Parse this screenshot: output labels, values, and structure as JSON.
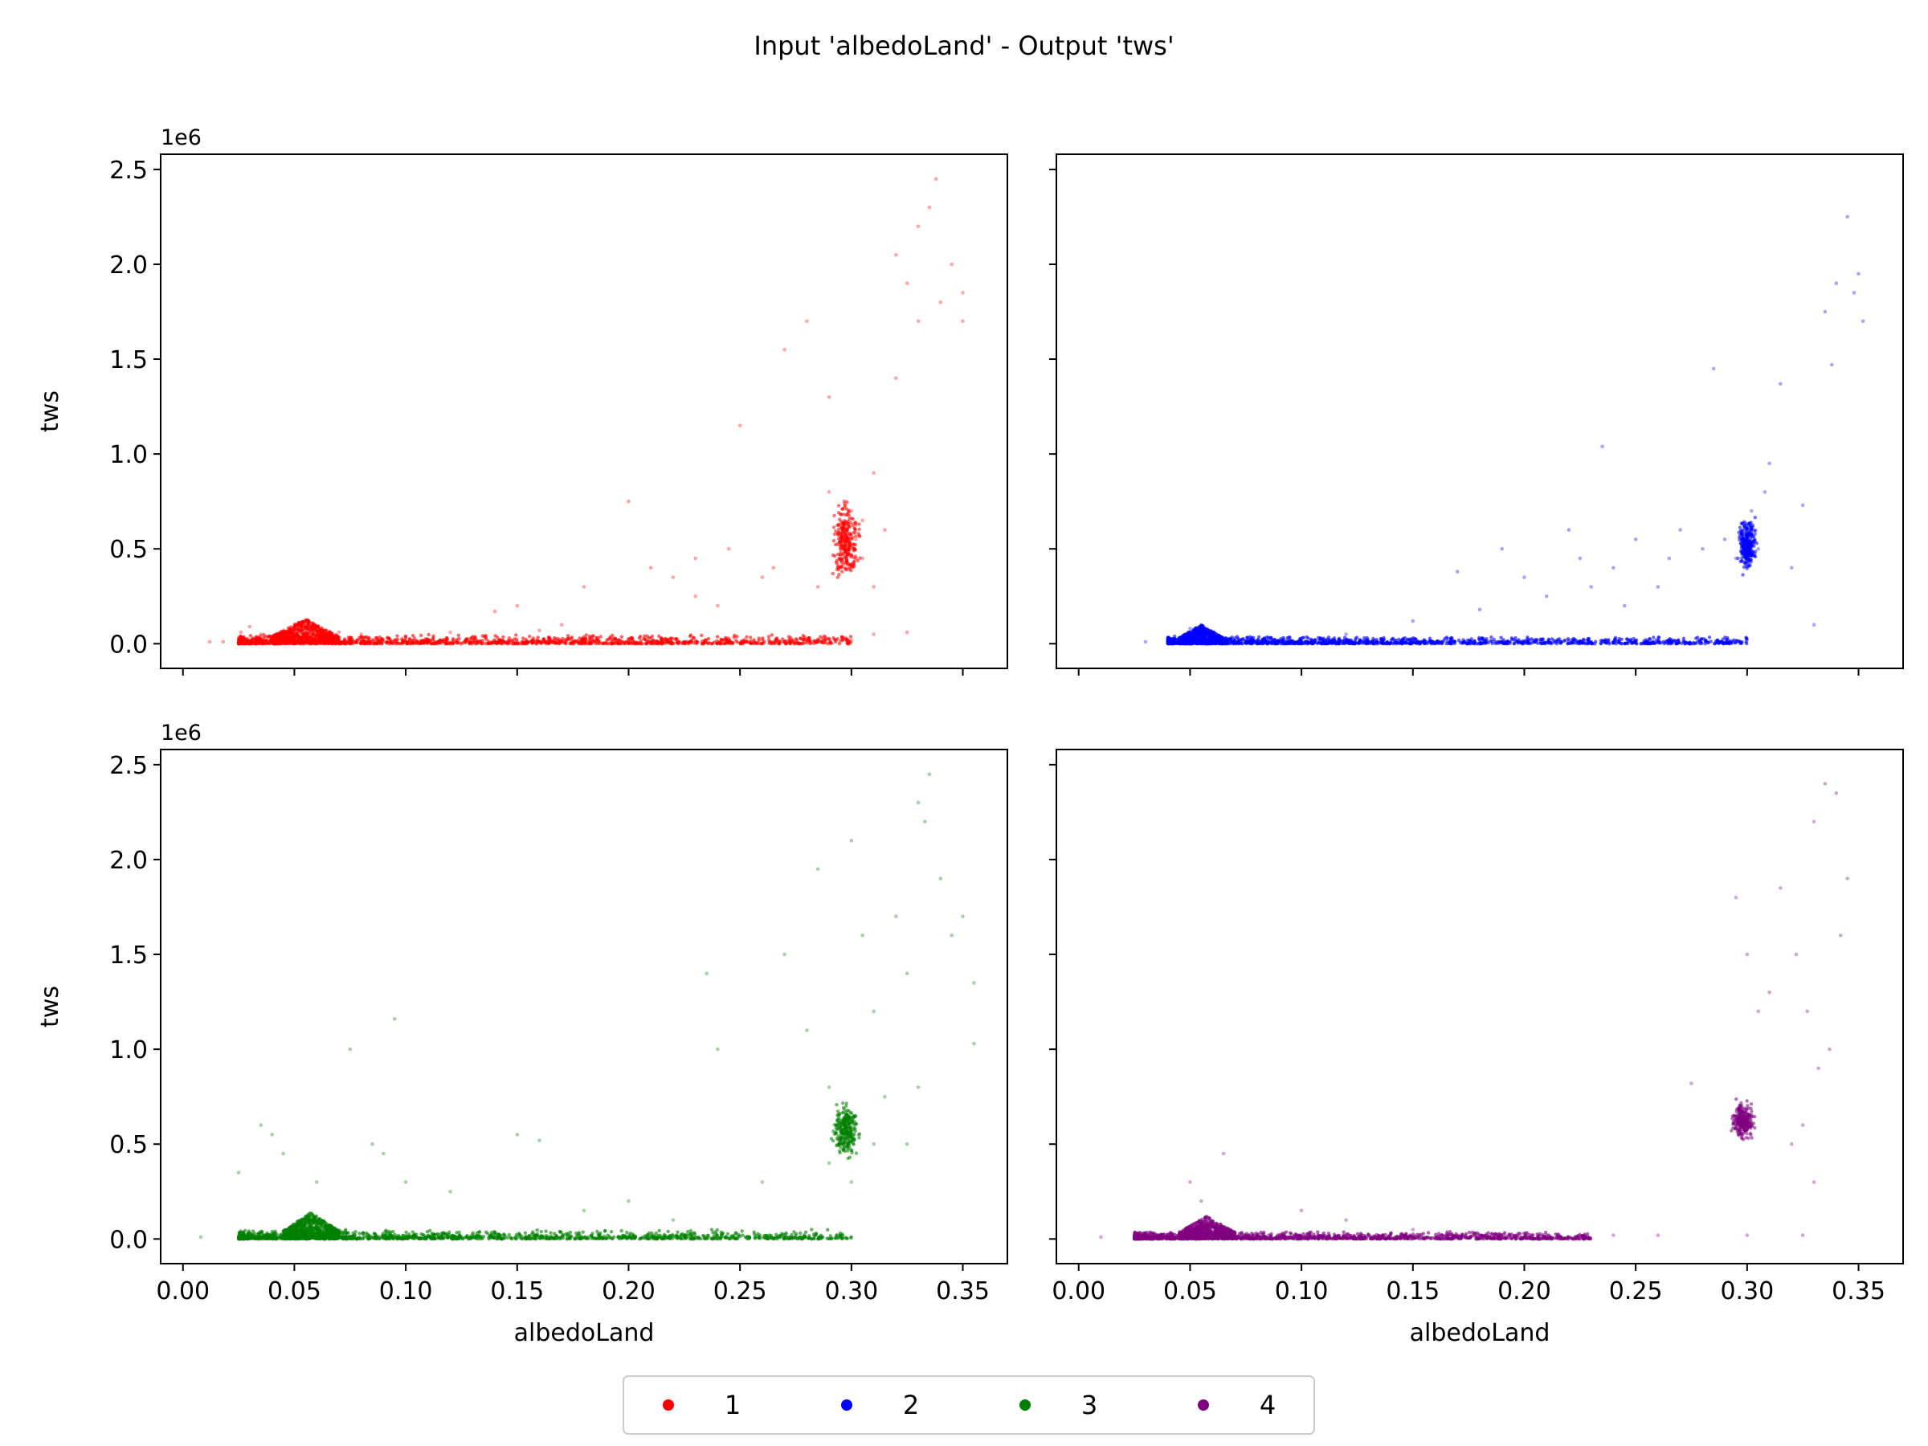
{
  "figure": {
    "title": "Input 'albedoLand' - Output 'tws'",
    "offset_label": "1e6"
  },
  "chart_data": [
    {
      "type": "scatter",
      "series_name": "1",
      "color": "#ff0000",
      "xlabel": "",
      "ylabel": "tws",
      "xlim": [
        -0.01,
        0.37
      ],
      "ylim": [
        -0.13,
        2.58
      ],
      "y_multiplier": "1e6",
      "xticks": [
        "0.00",
        "0.05",
        "0.10",
        "0.15",
        "0.20",
        "0.25",
        "0.30",
        "0.35"
      ],
      "yticks": [
        "0.0",
        "0.5",
        "1.0",
        "1.5",
        "2.0",
        "2.5"
      ],
      "x_tick_labels_shown": false,
      "y_tick_labels_shown": true,
      "points": [
        [
          0.012,
          0.01
        ],
        [
          0.018,
          0.01
        ],
        [
          0.026,
          0.06
        ],
        [
          0.03,
          0.09
        ],
        [
          0.035,
          0.05
        ],
        [
          0.045,
          0.07
        ],
        [
          0.05,
          0.1
        ],
        [
          0.055,
          0.12
        ],
        [
          0.06,
          0.08
        ],
        [
          0.07,
          0.06
        ],
        [
          0.08,
          0.05
        ],
        [
          0.1,
          0.04
        ],
        [
          0.12,
          0.06
        ],
        [
          0.14,
          0.17
        ],
        [
          0.15,
          0.2
        ],
        [
          0.16,
          0.07
        ],
        [
          0.17,
          0.1
        ],
        [
          0.18,
          0.3
        ],
        [
          0.2,
          0.75
        ],
        [
          0.21,
          0.4
        ],
        [
          0.22,
          0.35
        ],
        [
          0.23,
          0.25
        ],
        [
          0.23,
          0.45
        ],
        [
          0.24,
          0.2
        ],
        [
          0.245,
          0.5
        ],
        [
          0.25,
          1.15
        ],
        [
          0.26,
          0.35
        ],
        [
          0.265,
          0.4
        ],
        [
          0.27,
          1.55
        ],
        [
          0.28,
          1.7
        ],
        [
          0.285,
          0.3
        ],
        [
          0.29,
          0.8
        ],
        [
          0.29,
          1.3
        ],
        [
          0.295,
          0.4
        ],
        [
          0.295,
          0.5
        ],
        [
          0.298,
          0.6
        ],
        [
          0.3,
          0.7
        ],
        [
          0.302,
          0.55
        ],
        [
          0.305,
          0.65
        ],
        [
          0.305,
          0.45
        ],
        [
          0.31,
          0.9
        ],
        [
          0.31,
          0.3
        ],
        [
          0.315,
          0.6
        ],
        [
          0.32,
          1.4
        ],
        [
          0.32,
          2.05
        ],
        [
          0.325,
          1.9
        ],
        [
          0.33,
          2.2
        ],
        [
          0.33,
          1.7
        ],
        [
          0.335,
          2.3
        ],
        [
          0.338,
          2.45
        ],
        [
          0.34,
          1.8
        ],
        [
          0.345,
          2.0
        ],
        [
          0.35,
          1.7
        ],
        [
          0.35,
          1.85
        ],
        [
          0.31,
          0.05
        ],
        [
          0.3,
          0.02
        ],
        [
          0.325,
          0.06
        ]
      ],
      "dense_band": {
        "x": [
          0.025,
          0.3
        ],
        "y_max": 0.05,
        "hump_x": [
          0.04,
          0.07
        ],
        "hump_y": 0.13
      },
      "clusters": [
        {
          "x": [
            0.29,
            0.305
          ],
          "y": [
            0.3,
            0.8
          ]
        }
      ]
    },
    {
      "type": "scatter",
      "series_name": "2",
      "color": "#0000ff",
      "xlabel": "",
      "ylabel": "",
      "xlim": [
        -0.01,
        0.37
      ],
      "ylim": [
        -0.13,
        2.58
      ],
      "xticks": [
        "0.00",
        "0.05",
        "0.10",
        "0.15",
        "0.20",
        "0.25",
        "0.30",
        "0.35"
      ],
      "yticks": [
        "0.0",
        "0.5",
        "1.0",
        "1.5",
        "2.0",
        "2.5"
      ],
      "x_tick_labels_shown": false,
      "y_tick_labels_shown": false,
      "points": [
        [
          0.03,
          0.01
        ],
        [
          0.04,
          0.03
        ],
        [
          0.05,
          0.08
        ],
        [
          0.055,
          0.1
        ],
        [
          0.06,
          0.06
        ],
        [
          0.12,
          0.05
        ],
        [
          0.15,
          0.12
        ],
        [
          0.17,
          0.38
        ],
        [
          0.18,
          0.18
        ],
        [
          0.19,
          0.5
        ],
        [
          0.2,
          0.35
        ],
        [
          0.21,
          0.25
        ],
        [
          0.22,
          0.6
        ],
        [
          0.225,
          0.45
        ],
        [
          0.23,
          0.3
        ],
        [
          0.235,
          1.04
        ],
        [
          0.24,
          0.4
        ],
        [
          0.245,
          0.2
        ],
        [
          0.25,
          0.55
        ],
        [
          0.26,
          0.3
        ],
        [
          0.265,
          0.45
        ],
        [
          0.27,
          0.6
        ],
        [
          0.28,
          0.5
        ],
        [
          0.285,
          1.45
        ],
        [
          0.29,
          0.55
        ],
        [
          0.295,
          0.45
        ],
        [
          0.3,
          0.6
        ],
        [
          0.302,
          0.7
        ],
        [
          0.305,
          0.5
        ],
        [
          0.308,
          0.8
        ],
        [
          0.31,
          0.95
        ],
        [
          0.315,
          1.37
        ],
        [
          0.32,
          0.4
        ],
        [
          0.325,
          0.73
        ],
        [
          0.335,
          1.75
        ],
        [
          0.338,
          1.47
        ],
        [
          0.34,
          1.9
        ],
        [
          0.345,
          2.25
        ],
        [
          0.348,
          1.85
        ],
        [
          0.35,
          1.95
        ],
        [
          0.352,
          1.7
        ],
        [
          0.33,
          0.1
        ],
        [
          0.3,
          0.02
        ]
      ],
      "dense_band": {
        "x": [
          0.04,
          0.3
        ],
        "y_max": 0.04,
        "hump_x": [
          0.045,
          0.065
        ],
        "hump_y": 0.1
      },
      "clusters": [
        {
          "x": [
            0.295,
            0.305
          ],
          "y": [
            0.35,
            0.7
          ]
        }
      ]
    },
    {
      "type": "scatter",
      "series_name": "3",
      "color": "#008000",
      "xlabel": "albedoLand",
      "ylabel": "tws",
      "xlim": [
        -0.01,
        0.37
      ],
      "ylim": [
        -0.13,
        2.58
      ],
      "y_multiplier": "1e6",
      "xticks": [
        "0.00",
        "0.05",
        "0.10",
        "0.15",
        "0.20",
        "0.25",
        "0.30",
        "0.35"
      ],
      "yticks": [
        "0.0",
        "0.5",
        "1.0",
        "1.5",
        "2.0",
        "2.5"
      ],
      "x_tick_labels_shown": true,
      "y_tick_labels_shown": true,
      "points": [
        [
          0.008,
          0.01
        ],
        [
          0.025,
          0.35
        ],
        [
          0.035,
          0.6
        ],
        [
          0.04,
          0.55
        ],
        [
          0.045,
          0.45
        ],
        [
          0.06,
          0.3
        ],
        [
          0.075,
          1.0
        ],
        [
          0.085,
          0.5
        ],
        [
          0.09,
          0.45
        ],
        [
          0.095,
          1.16
        ],
        [
          0.1,
          0.3
        ],
        [
          0.12,
          0.25
        ],
        [
          0.15,
          0.55
        ],
        [
          0.16,
          0.52
        ],
        [
          0.18,
          0.15
        ],
        [
          0.2,
          0.2
        ],
        [
          0.22,
          0.1
        ],
        [
          0.235,
          1.4
        ],
        [
          0.24,
          1.0
        ],
        [
          0.26,
          0.3
        ],
        [
          0.27,
          1.5
        ],
        [
          0.28,
          1.1
        ],
        [
          0.285,
          1.95
        ],
        [
          0.29,
          0.8
        ],
        [
          0.29,
          0.4
        ],
        [
          0.295,
          0.6
        ],
        [
          0.3,
          2.1
        ],
        [
          0.3,
          0.3
        ],
        [
          0.305,
          1.6
        ],
        [
          0.31,
          0.5
        ],
        [
          0.31,
          1.2
        ],
        [
          0.315,
          0.75
        ],
        [
          0.32,
          1.7
        ],
        [
          0.325,
          1.4
        ],
        [
          0.33,
          2.3
        ],
        [
          0.333,
          2.2
        ],
        [
          0.335,
          2.45
        ],
        [
          0.34,
          1.9
        ],
        [
          0.345,
          1.6
        ],
        [
          0.35,
          1.7
        ],
        [
          0.355,
          1.35
        ],
        [
          0.355,
          1.03
        ],
        [
          0.33,
          0.8
        ],
        [
          0.325,
          0.5
        ]
      ],
      "dense_band": {
        "x": [
          0.025,
          0.3
        ],
        "y_max": 0.05,
        "hump_x": [
          0.045,
          0.07
        ],
        "hump_y": 0.14
      },
      "clusters": [
        {
          "x": [
            0.29,
            0.305
          ],
          "y": [
            0.4,
            0.75
          ]
        }
      ]
    },
    {
      "type": "scatter",
      "series_name": "4",
      "color": "#800080",
      "xlabel": "albedoLand",
      "ylabel": "",
      "xlim": [
        -0.01,
        0.37
      ],
      "ylim": [
        -0.13,
        2.58
      ],
      "xticks": [
        "0.00",
        "0.05",
        "0.10",
        "0.15",
        "0.20",
        "0.25",
        "0.30",
        "0.35"
      ],
      "yticks": [
        "0.0",
        "0.5",
        "1.0",
        "1.5",
        "2.0",
        "2.5"
      ],
      "x_tick_labels_shown": true,
      "y_tick_labels_shown": false,
      "points": [
        [
          0.01,
          0.01
        ],
        [
          0.025,
          0.01
        ],
        [
          0.05,
          0.3
        ],
        [
          0.055,
          0.2
        ],
        [
          0.065,
          0.45
        ],
        [
          0.1,
          0.15
        ],
        [
          0.12,
          0.1
        ],
        [
          0.15,
          0.05
        ],
        [
          0.24,
          0.02
        ],
        [
          0.26,
          0.02
        ],
        [
          0.275,
          0.82
        ],
        [
          0.295,
          1.8
        ],
        [
          0.297,
          0.7
        ],
        [
          0.3,
          1.5
        ],
        [
          0.302,
          0.6
        ],
        [
          0.305,
          1.2
        ],
        [
          0.31,
          1.3
        ],
        [
          0.315,
          1.85
        ],
        [
          0.32,
          0.5
        ],
        [
          0.322,
          1.5
        ],
        [
          0.325,
          0.6
        ],
        [
          0.327,
          1.2
        ],
        [
          0.33,
          2.2
        ],
        [
          0.332,
          0.9
        ],
        [
          0.335,
          2.4
        ],
        [
          0.337,
          1.0
        ],
        [
          0.34,
          2.35
        ],
        [
          0.342,
          1.6
        ],
        [
          0.345,
          1.9
        ],
        [
          0.33,
          0.3
        ],
        [
          0.325,
          0.02
        ],
        [
          0.3,
          0.02
        ]
      ],
      "dense_band": {
        "x": [
          0.025,
          0.23
        ],
        "y_max": 0.04,
        "hump_x": [
          0.045,
          0.07
        ],
        "hump_y": 0.12
      },
      "clusters": [
        {
          "x": [
            0.292,
            0.305
          ],
          "y": [
            0.5,
            0.75
          ]
        }
      ]
    }
  ],
  "legend": {
    "position": "bottom-center",
    "items": [
      {
        "label": "1",
        "color": "#ff0000"
      },
      {
        "label": "2",
        "color": "#0000ff"
      },
      {
        "label": "3",
        "color": "#008000"
      },
      {
        "label": "4",
        "color": "#800080"
      }
    ]
  }
}
